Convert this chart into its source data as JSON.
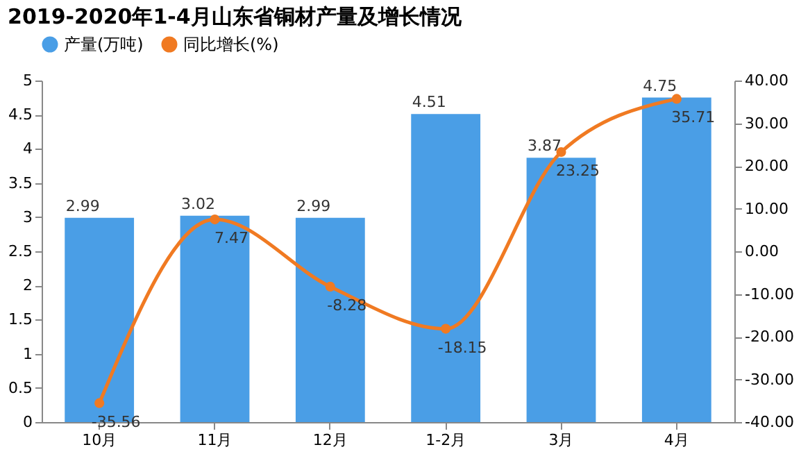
{
  "chart_data": {
    "type": "bar",
    "title": "2019-2020年1-4月山东省铜材产量及增长情况",
    "categories": [
      "10月",
      "11月",
      "12月",
      "1-2月",
      "3月",
      "4月"
    ],
    "series": [
      {
        "name": "产量(万吨)",
        "color": "#4a9ee6",
        "values": [
          2.99,
          3.02,
          2.99,
          4.51,
          3.87,
          4.75
        ]
      },
      {
        "name": "同比增长(%)",
        "type": "line",
        "axis": "y2",
        "color": "#f07a22",
        "marker": "circle",
        "values": [
          -35.56,
          7.47,
          -8.28,
          -18.15,
          23.25,
          35.71
        ]
      }
    ],
    "ylim": [
      0,
      5
    ],
    "yticks": [
      0,
      0.5,
      1,
      1.5,
      2,
      2.5,
      3,
      3.5,
      4,
      4.5,
      5
    ],
    "y2lim": [
      -40,
      40
    ],
    "y2ticks": [
      {
        "value": -40,
        "label": "-40.00"
      },
      {
        "value": -30,
        "label": "-30.00"
      },
      {
        "value": -20,
        "label": "-20.00"
      },
      {
        "value": -10,
        "label": "-10.00"
      },
      {
        "value": 0,
        "label": "0.00"
      },
      {
        "value": 10,
        "label": "10.00"
      },
      {
        "value": 20,
        "label": "20.00"
      },
      {
        "value": 30,
        "label": "30.00"
      },
      {
        "value": 40,
        "label": "40.00"
      }
    ],
    "data_labels": true,
    "legend": "top",
    "grid": false
  }
}
